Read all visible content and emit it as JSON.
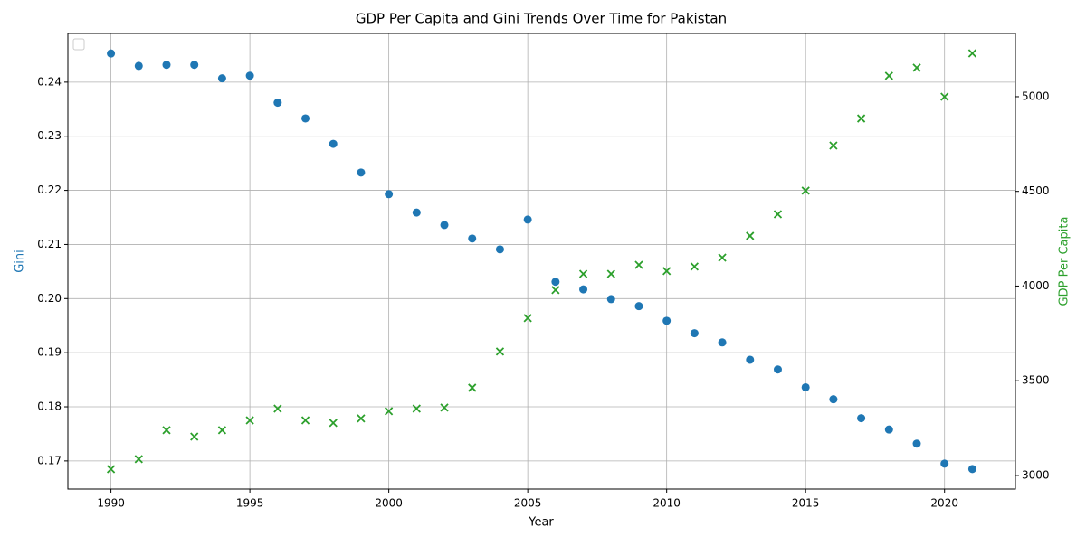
{
  "chart_data": {
    "type": "scatter",
    "title": "GDP Per Capita and Gini Trends Over Time for Pakistan",
    "xlabel": "Year",
    "ylabel": "Gini",
    "y2label": "GDP Per Capita",
    "x": [
      1990,
      1991,
      1992,
      1993,
      1994,
      1995,
      1996,
      1997,
      1998,
      1999,
      2000,
      2001,
      2002,
      2003,
      2004,
      2005,
      2006,
      2007,
      2008,
      2009,
      2010,
      2011,
      2012,
      2013,
      2014,
      2015,
      2016,
      2017,
      2018,
      2019,
      2020,
      2021
    ],
    "series": [
      {
        "name": "Gini",
        "color": "#1f77b4",
        "marker": "o",
        "values": [
          0.2453,
          0.243,
          0.2432,
          0.2432,
          0.2407,
          0.2412,
          0.2362,
          0.2333,
          0.2286,
          0.2233,
          0.2193,
          0.2159,
          0.2136,
          0.2111,
          0.2091,
          0.2146,
          0.2031,
          0.2017,
          0.1999,
          0.1986,
          0.1959,
          0.1936,
          0.1919,
          0.1887,
          0.1869,
          0.1836,
          0.1814,
          0.1779,
          0.1758,
          0.1732,
          0.1695,
          0.1685
        ]
      },
      {
        "name": "GDP Per Capita",
        "color": "#2ca02c",
        "marker": "x",
        "axis": "y2",
        "values": [
          3033,
          3086,
          3239,
          3205,
          3239,
          3291,
          3353,
          3291,
          3277,
          3301,
          3339,
          3353,
          3358,
          3463,
          3654,
          3831,
          3979,
          4064,
          4064,
          4112,
          4079,
          4103,
          4150,
          4265,
          4379,
          4504,
          4742,
          4885,
          5110,
          5153,
          5000,
          5229
        ]
      }
    ],
    "xlim": [
      1988.45,
      2022.55
    ],
    "xticks": [
      1990,
      1995,
      2000,
      2005,
      2010,
      2015,
      2020
    ],
    "ylim": [
      0.1648,
      0.249
    ],
    "yticks": [
      0.17,
      0.18,
      0.19,
      {
        "value": 0.2,
        "label": "0.20"
      },
      0.21,
      0.22,
      0.23,
      0.24
    ],
    "y2lim": [
      2928,
      5334
    ],
    "y2ticks": [
      3000,
      3500,
      4000,
      4500,
      5000
    ],
    "grid": true,
    "legend": "upper left"
  }
}
